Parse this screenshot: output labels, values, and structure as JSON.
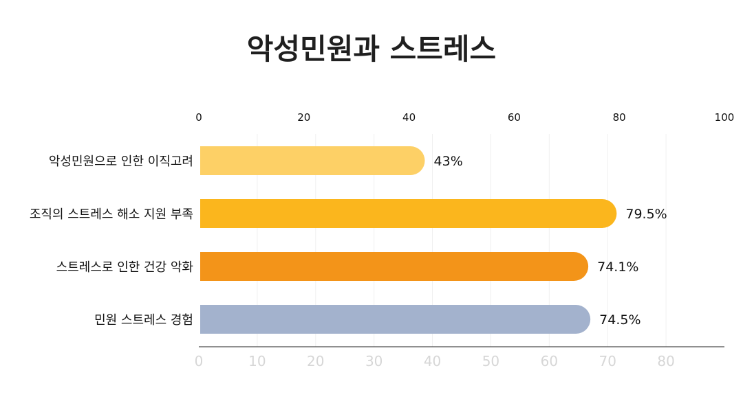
{
  "chart_data": {
    "type": "bar",
    "orientation": "horizontal",
    "title": "악성민원과 스트레스",
    "categories": [
      "악성민원으로 인한 이직고려",
      "조직의 스트레스 해소 지원 부족",
      "스트레스로 인한 건강 악화",
      "민원 스트레스 경험"
    ],
    "values": [
      43,
      79.5,
      74.1,
      74.5
    ],
    "value_labels": [
      "43%",
      "79.5%",
      "74.1%",
      "74.5%"
    ],
    "colors": [
      "#FDD066",
      "#FBB61D",
      "#F39419",
      "#A3B2CD"
    ],
    "x_top_ticks": [
      "0",
      "20",
      "40",
      "60",
      "80",
      "100"
    ],
    "x_top_range": [
      0,
      100
    ],
    "x_bottom_ticks": [
      "0",
      "10",
      "20",
      "30",
      "40",
      "50",
      "60",
      "70",
      "80"
    ],
    "grid": true
  }
}
